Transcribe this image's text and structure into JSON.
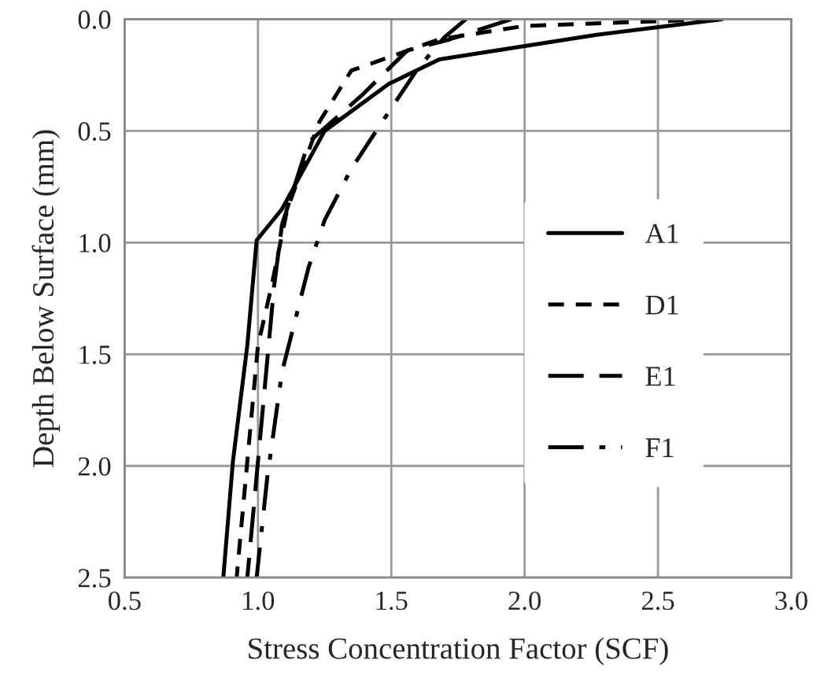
{
  "chart_data": {
    "type": "line",
    "xlabel": "Stress Concentration Factor (SCF)",
    "ylabel": "Depth Below Surface (mm)",
    "xlim": [
      0.5,
      3.0
    ],
    "xticks": [
      {
        "value": 0.5,
        "label": "0.5"
      },
      {
        "value": 1.0,
        "label": "1.0"
      },
      {
        "value": 1.5,
        "label": "1.5"
      },
      {
        "value": 2.0,
        "label": "2.0"
      },
      {
        "value": 2.5,
        "label": "2.5"
      },
      {
        "value": 3.0,
        "label": "3.0"
      }
    ],
    "ylim": [
      2.5,
      0
    ],
    "yticks": [
      {
        "value": 0,
        "label": "0.0"
      },
      {
        "value": 0.5,
        "label": "0.5"
      },
      {
        "value": 1.0,
        "label": "1.0"
      },
      {
        "value": 1.5,
        "label": "1.5"
      },
      {
        "value": 2.0,
        "label": "2.0"
      },
      {
        "value": 2.5,
        "label": "2.5"
      }
    ],
    "grid": true,
    "legend": "right",
    "marker": "none",
    "series": [
      {
        "name": "A1",
        "color": "#000000",
        "line_style": "solid",
        "x": [
          2.74,
          2.27,
          1.68,
          1.49,
          1.25,
          1.09,
          0.995,
          0.96,
          0.906,
          0.87
        ],
        "values": [
          0,
          0.07,
          0.18,
          0.29,
          0.5,
          0.85,
          0.99,
          1.46,
          1.98,
          2.5
        ]
      },
      {
        "name": "D1",
        "color": "#000000",
        "line_style": "dashed",
        "x": [
          2.7,
          2.0,
          1.68,
          1.35,
          1.23,
          1.11,
          1.05,
          1.0,
          0.96,
          0.92
        ],
        "values": [
          0,
          0.03,
          0.09,
          0.23,
          0.46,
          0.85,
          1.2,
          1.46,
          1.98,
          2.5
        ]
      },
      {
        "name": "E1",
        "color": "#000000",
        "line_style": "longdash",
        "x": [
          1.95,
          1.72,
          1.56,
          1.39,
          1.19,
          1.09,
          1.06,
          1.0,
          0.96
        ],
        "values": [
          0,
          0.09,
          0.14,
          0.34,
          0.55,
          0.92,
          1.2,
          1.98,
          2.5
        ]
      },
      {
        "name": "F1",
        "color": "#000000",
        "line_style": "dashdot",
        "x": [
          1.78,
          1.7,
          1.6,
          1.46,
          1.35,
          1.25,
          1.19,
          1.09,
          1.035,
          0.995
        ],
        "values": [
          0,
          0.08,
          0.22,
          0.47,
          0.67,
          0.9,
          1.11,
          1.58,
          2.05,
          2.5
        ]
      }
    ]
  }
}
